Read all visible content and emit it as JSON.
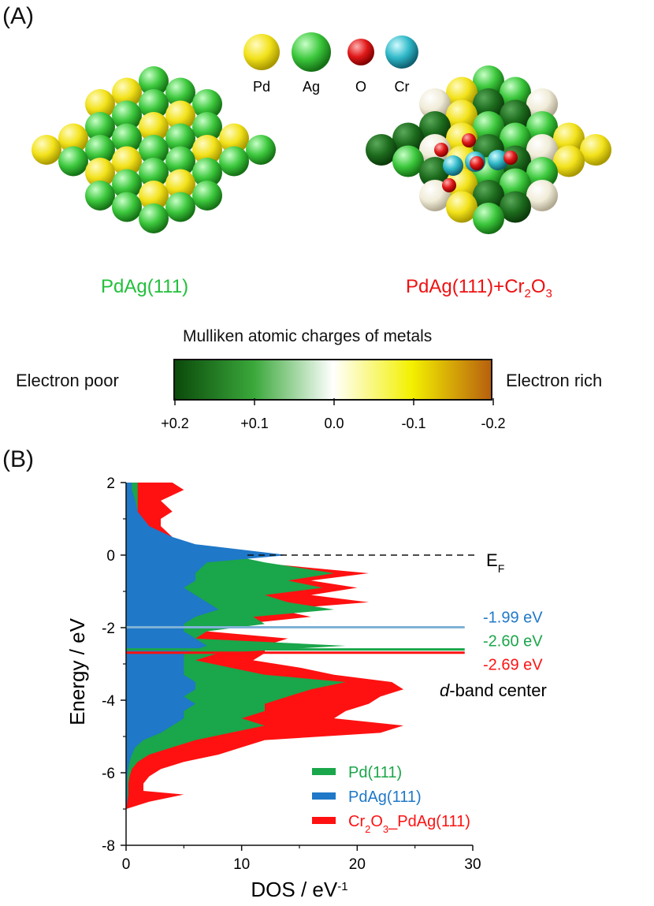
{
  "panel_a": {
    "label": "(A)",
    "atom_legend": [
      {
        "label": "Pd",
        "color": "#f2e21a"
      },
      {
        "label": "Ag",
        "color": "#2fbf2f"
      },
      {
        "label": "O",
        "color": "#e01818"
      },
      {
        "label": "Cr",
        "color": "#2fb8c8"
      }
    ],
    "structure_left_label": "PdAg(111)",
    "structure_right_label_main": "PdAg(111)+Cr",
    "structure_right_label_sub1": "2",
    "structure_right_label_mid": "O",
    "structure_right_label_sub2": "3",
    "colorbar": {
      "title": "Mulliken atomic charges of metals",
      "left_label": "Electron poor",
      "right_label": "Electron rich",
      "ticks": [
        "+0.2",
        "+0.1",
        "0.0",
        "-0.1",
        "-0.2"
      ],
      "colors": [
        "#0b4a0b",
        "#3aa83a",
        "#ffffff",
        "#f3f000",
        "#b8600e"
      ]
    }
  },
  "panel_b": {
    "label": "(B)",
    "fermi_label": "E",
    "fermi_sub": "F",
    "dband_label_italic": "d",
    "dband_label_rest": "-band center",
    "legend": [
      {
        "label": "Pd(111)",
        "color": "#1aa64a"
      },
      {
        "label": "PdAg(111)",
        "color": "#1f78c8"
      },
      {
        "label_pre": "Cr",
        "sub1": "2",
        "label_mid": "O",
        "sub2": "3",
        "label_post": "_PdAg(111)",
        "color": "#ff1111"
      }
    ]
  },
  "chart_data": {
    "type": "area",
    "xlabel": "DOS / eV",
    "xlabel_sup": "-1",
    "ylabel": "Energy / eV",
    "xlim": [
      0,
      30
    ],
    "ylim": [
      -8,
      2
    ],
    "xticks": [
      0,
      10,
      20,
      30
    ],
    "yticks": [
      -8,
      -6,
      -4,
      -2,
      0,
      2
    ],
    "fermi_level": 0,
    "series": [
      {
        "name": "Cr2O3_PdAg(111)",
        "color": "#ff1111",
        "d_band_center": -2.69,
        "d_band_label": "-2.69 eV",
        "energy": [
          2.0,
          1.8,
          1.5,
          1.2,
          1.0,
          0.8,
          0.5,
          0.3,
          0.0,
          -0.2,
          -0.5,
          -0.7,
          -0.9,
          -1.1,
          -1.3,
          -1.5,
          -1.7,
          -1.9,
          -2.1,
          -2.3,
          -2.5,
          -2.7,
          -2.9,
          -3.1,
          -3.3,
          -3.5,
          -3.7,
          -3.9,
          -4.1,
          -4.3,
          -4.5,
          -4.7,
          -4.9,
          -5.1,
          -5.3,
          -5.5,
          -5.7,
          -5.9,
          -6.1,
          -6.3,
          -6.5,
          -6.6,
          -6.8,
          -7.0
        ],
        "dos": [
          4,
          5,
          3,
          4,
          3,
          3,
          4,
          4,
          10,
          11,
          21,
          16,
          20,
          16,
          21,
          13,
          16,
          10,
          7,
          14,
          12,
          12,
          11,
          15,
          18,
          23,
          24,
          22,
          21,
          19,
          18,
          24,
          22,
          12,
          10,
          8,
          5,
          3,
          2,
          1.5,
          1.5,
          5,
          2,
          0
        ]
      },
      {
        "name": "Pd(111)",
        "color": "#1aa64a",
        "d_band_center": -2.6,
        "d_band_label": "-2.60 eV",
        "energy": [
          2.0,
          1.8,
          1.5,
          1.2,
          1.0,
          0.8,
          0.5,
          0.3,
          0.0,
          -0.2,
          -0.5,
          -0.7,
          -0.9,
          -1.1,
          -1.3,
          -1.5,
          -1.7,
          -1.9,
          -2.1,
          -2.3,
          -2.5,
          -2.7,
          -2.9,
          -3.1,
          -3.3,
          -3.5,
          -3.7,
          -3.9,
          -4.1,
          -4.3,
          -4.5,
          -4.7,
          -4.9,
          -5.1,
          -5.3,
          -5.5,
          -5.7,
          -5.9,
          -6.1,
          -6.3,
          -6.5,
          -6.6,
          -6.8,
          -7.0
        ],
        "dos": [
          1,
          1,
          1,
          1,
          0.8,
          1,
          3,
          5,
          9,
          12,
          18,
          14,
          17,
          12,
          14,
          18,
          11,
          12,
          7,
          6,
          19,
          8,
          6,
          9,
          12,
          19,
          16,
          14,
          12,
          12,
          10,
          12,
          9,
          6,
          4,
          2,
          1,
          0.5,
          0.3,
          0.2,
          0.2,
          0.2,
          0.1,
          0
        ]
      },
      {
        "name": "PdAg(111)",
        "color": "#1f78c8",
        "d_band_center": -1.99,
        "d_band_label": "-1.99 eV",
        "energy": [
          2.0,
          1.8,
          1.5,
          1.2,
          1.0,
          0.8,
          0.5,
          0.3,
          0.0,
          -0.2,
          -0.5,
          -0.7,
          -0.9,
          -1.1,
          -1.3,
          -1.5,
          -1.7,
          -1.9,
          -2.1,
          -2.3,
          -2.5,
          -2.7,
          -2.9,
          -3.1,
          -3.3,
          -3.5,
          -3.7,
          -3.9,
          -4.1,
          -4.3,
          -4.5,
          -4.7,
          -4.9,
          -5.1,
          -5.3,
          -5.5,
          -5.7,
          -5.9,
          -6.1,
          -6.3,
          -6.5,
          -6.6,
          -6.8,
          -7.0
        ],
        "dos": [
          0.5,
          0.5,
          0.8,
          1,
          1.5,
          2,
          4,
          6,
          14,
          7,
          6,
          6,
          5,
          6,
          7,
          8,
          6,
          5,
          5,
          6,
          7,
          5,
          5,
          5,
          5,
          6,
          6,
          5,
          6,
          5,
          5,
          4,
          3,
          1.5,
          0.8,
          0.5,
          0.3,
          0.2,
          0.1,
          0.1,
          0.1,
          0.1,
          0.1,
          0
        ]
      }
    ]
  }
}
